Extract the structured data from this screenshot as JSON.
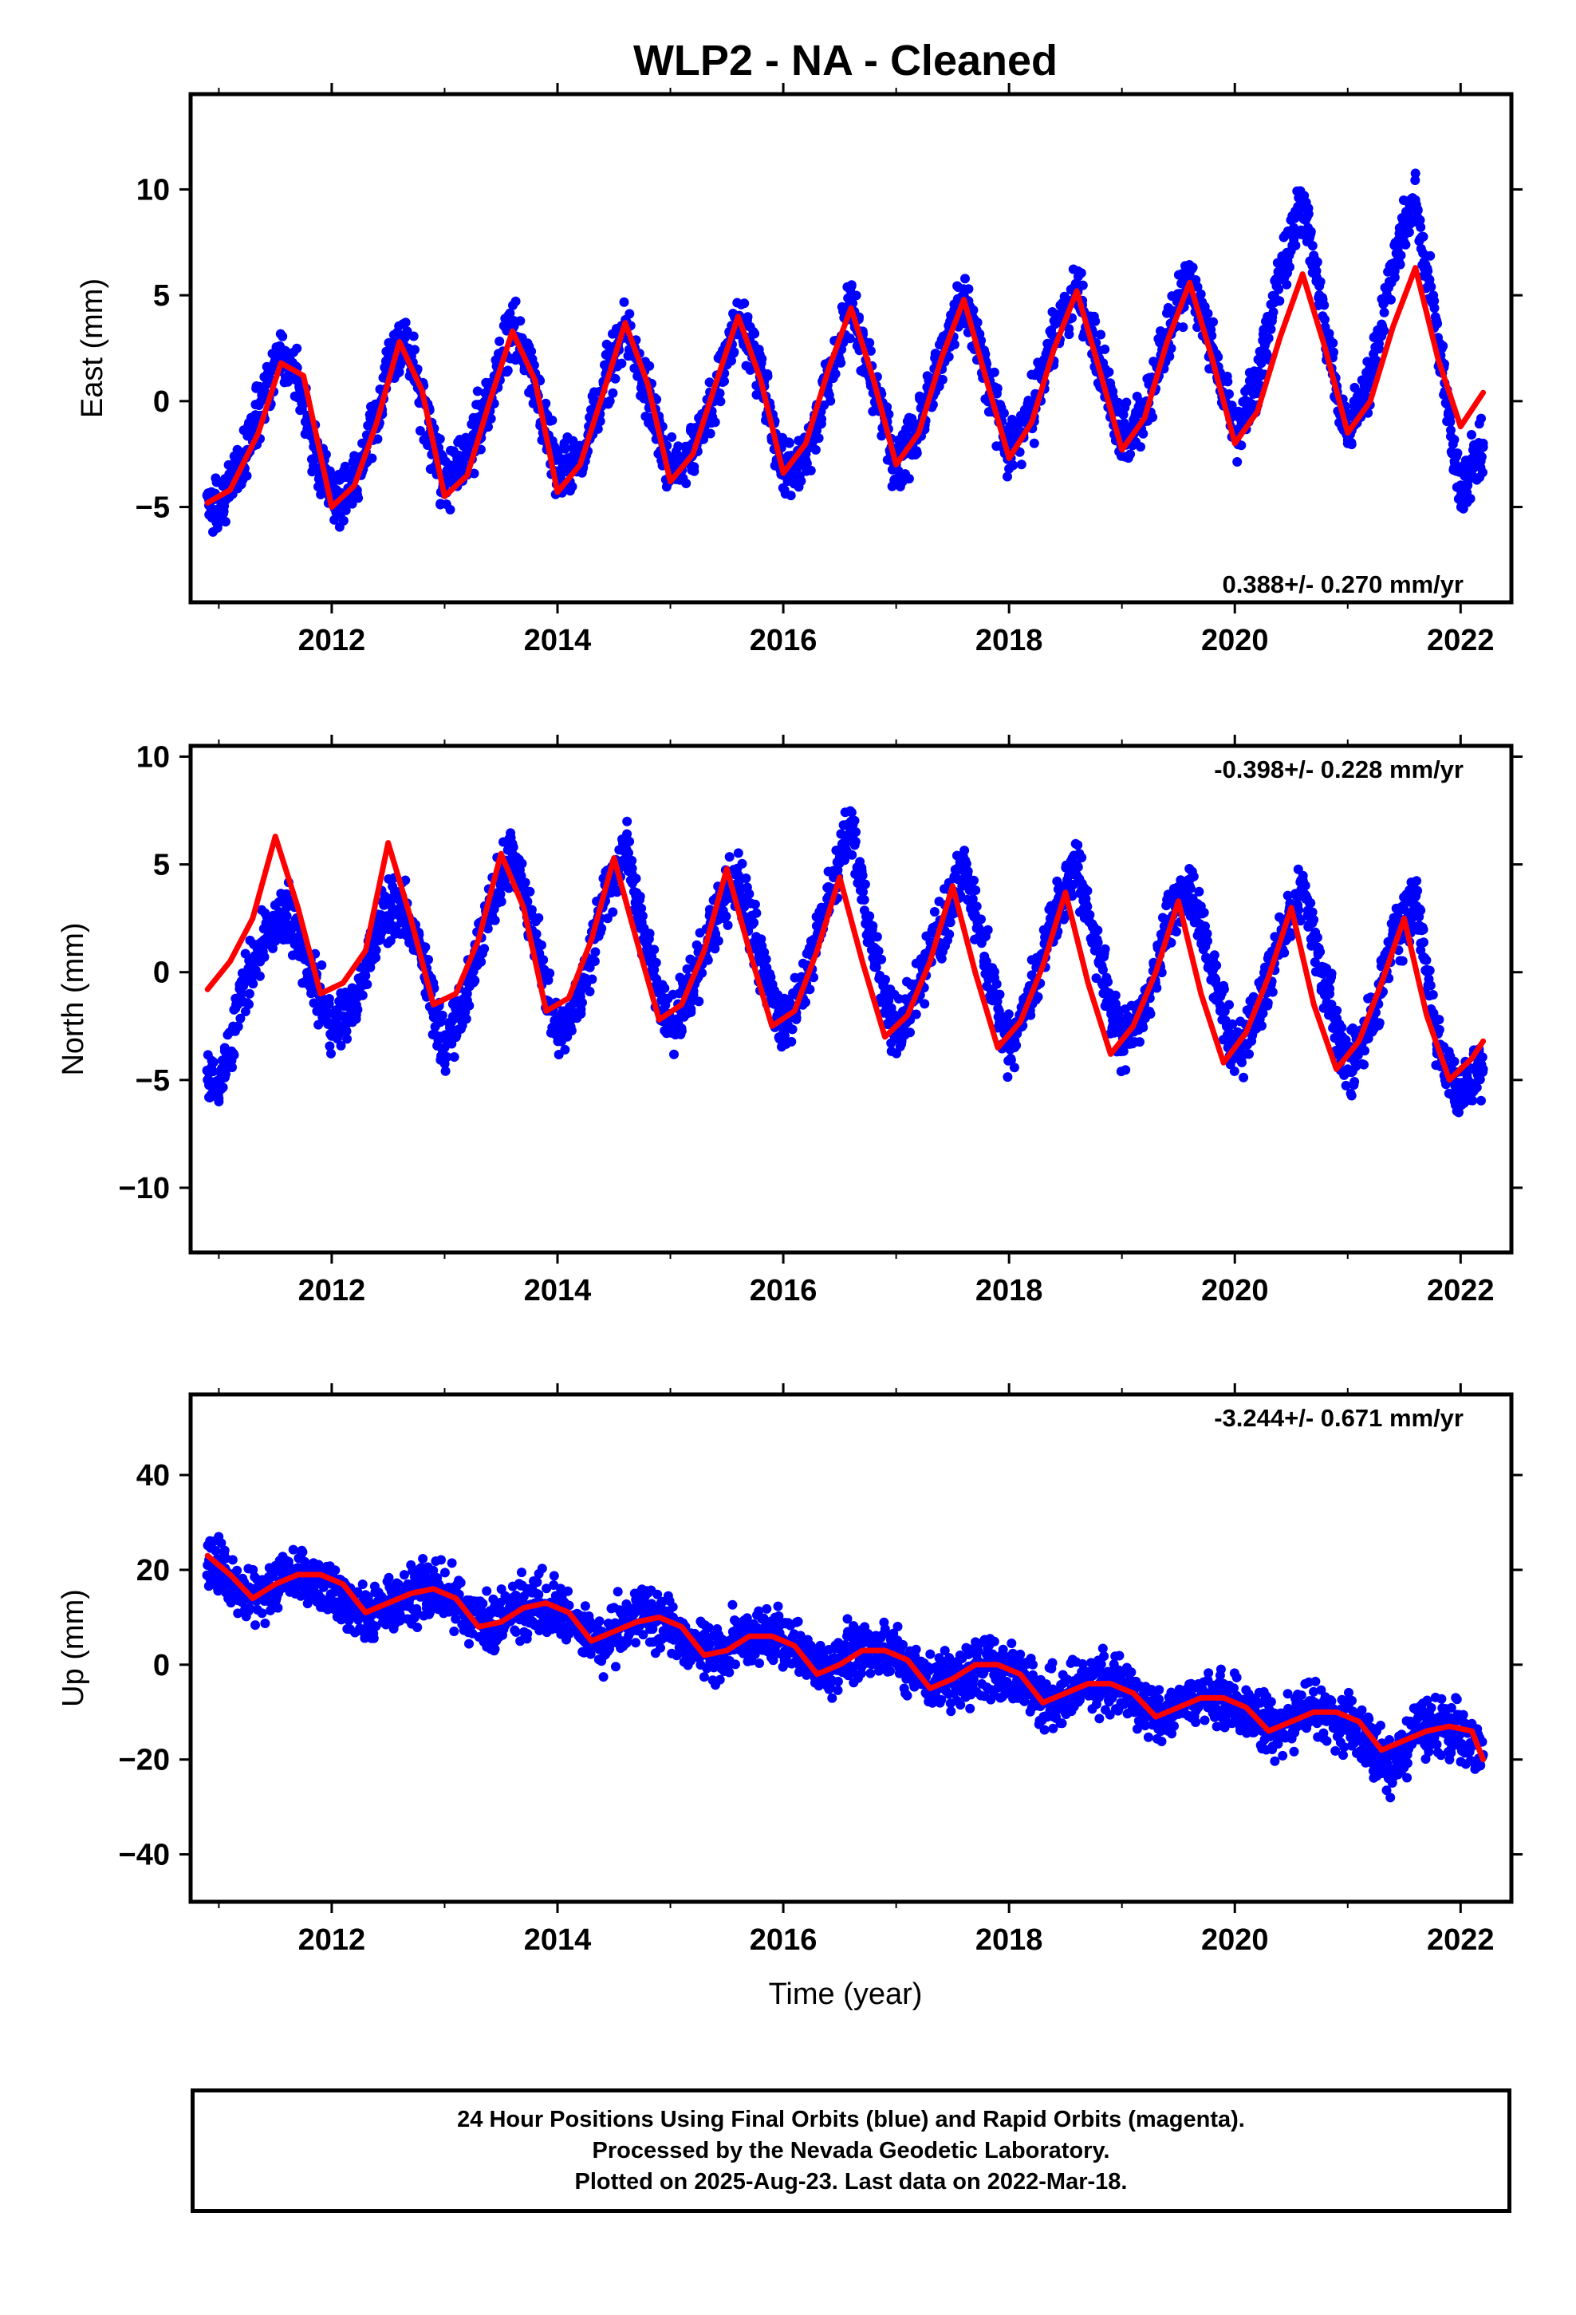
{
  "title": "WLP2  - NA - Cleaned",
  "xlabel": "Time (year)",
  "footer": {
    "line1": "24 Hour Positions Using Final Orbits (blue) and Rapid Orbits (magenta).",
    "line2": "Processed by the Nevada Geodetic Laboratory.",
    "line3": "Plotted on 2025-Aug-23. Last data on 2022-Mar-18."
  },
  "colors": {
    "points": "#0000ff",
    "model": "#ff0000",
    "frame": "#000000"
  },
  "chart_data": [
    {
      "type": "scatter",
      "ylabel": "East (mm)",
      "rate_label": "0.388+/- 0.270 mm/yr",
      "rate_position": "bottom-right",
      "xlim": [
        2010.75,
        2022.45
      ],
      "ylim": [
        -9.5,
        14.5
      ],
      "xticks": [
        2012,
        2014,
        2016,
        2018,
        2020,
        2022
      ],
      "yticks": [
        -5,
        0,
        5,
        10
      ],
      "series": [
        {
          "role": "daily positions",
          "style": "points",
          "x": [
            2010.9,
            2011.0,
            2011.2,
            2011.4,
            2011.55,
            2011.7,
            2011.9,
            2012.1,
            2012.3,
            2012.5,
            2012.65,
            2012.8,
            2013.0,
            2013.2,
            2013.4,
            2013.6,
            2013.8,
            2014.0,
            2014.2,
            2014.4,
            2014.6,
            2014.8,
            2015.0,
            2015.2,
            2015.4,
            2015.6,
            2015.8,
            2016.0,
            2016.2,
            2016.4,
            2016.6,
            2016.8,
            2017.0,
            2017.2,
            2017.4,
            2017.6,
            2017.8,
            2018.0,
            2018.2,
            2018.4,
            2018.6,
            2018.8,
            2019.0,
            2019.2,
            2019.4,
            2019.6,
            2019.8,
            2020.0,
            2020.2,
            2020.4,
            2020.6,
            2020.8,
            2021.0,
            2021.2,
            2021.4,
            2021.6,
            2021.8,
            2022.0,
            2022.2
          ],
          "y": [
            -4.5,
            -5.2,
            -3.0,
            0.5,
            2.5,
            1.0,
            -3.5,
            -4.8,
            -2.5,
            1.5,
            3.0,
            0.0,
            -4.0,
            -2.5,
            0.5,
            3.5,
            1.0,
            -3.5,
            -3.0,
            0.5,
            3.5,
            0.5,
            -3.5,
            -2.5,
            0.5,
            4.0,
            1.5,
            -3.5,
            -2.5,
            1.0,
            4.5,
            1.0,
            -3.0,
            -1.5,
            2.0,
            5.0,
            1.5,
            -2.5,
            -0.5,
            3.0,
            5.5,
            2.0,
            -2.0,
            -0.5,
            3.0,
            6.0,
            2.5,
            -1.5,
            1.0,
            6.0,
            9.5,
            3.5,
            -2.0,
            1.0,
            6.5,
            9.5,
            3.0,
            -4.5,
            -2.0
          ]
        },
        {
          "role": "model fit",
          "style": "line",
          "x": [
            2010.9,
            2011.1,
            2011.35,
            2011.55,
            2011.75,
            2012.0,
            2012.2,
            2012.4,
            2012.6,
            2012.8,
            2013.0,
            2013.2,
            2013.4,
            2013.6,
            2013.8,
            2014.0,
            2014.2,
            2014.4,
            2014.6,
            2014.8,
            2015.0,
            2015.2,
            2015.4,
            2015.6,
            2015.8,
            2016.0,
            2016.2,
            2016.4,
            2016.6,
            2016.8,
            2017.0,
            2017.2,
            2017.4,
            2017.6,
            2017.8,
            2018.0,
            2018.2,
            2018.4,
            2018.6,
            2018.8,
            2019.0,
            2019.2,
            2019.4,
            2019.6,
            2019.8,
            2020.0,
            2020.2,
            2020.4,
            2020.6,
            2020.8,
            2021.0,
            2021.2,
            2021.4,
            2021.6,
            2021.8,
            2022.0,
            2022.2
          ],
          "y": [
            -4.8,
            -4.2,
            -1.5,
            1.8,
            1.2,
            -5.0,
            -4.0,
            -1.0,
            2.8,
            0.5,
            -4.5,
            -3.5,
            0.0,
            3.3,
            1.0,
            -4.3,
            -3.0,
            0.3,
            3.7,
            0.8,
            -3.8,
            -2.5,
            0.8,
            4.0,
            1.0,
            -3.4,
            -2.0,
            1.5,
            4.4,
            1.0,
            -3.0,
            -1.5,
            2.0,
            4.8,
            1.0,
            -2.7,
            -1.0,
            2.5,
            5.2,
            1.5,
            -2.3,
            -0.8,
            2.8,
            5.6,
            2.0,
            -2.0,
            -0.5,
            3.0,
            6.0,
            2.5,
            -1.5,
            0.0,
            3.5,
            6.3,
            2.0,
            -1.2,
            0.4
          ]
        }
      ]
    },
    {
      "type": "scatter",
      "ylabel": "North (mm)",
      "rate_label": "-0.398+/- 0.228 mm/yr",
      "rate_position": "top-right",
      "xlim": [
        2010.75,
        2022.45
      ],
      "ylim": [
        -13.0,
        10.5
      ],
      "xticks": [
        2012,
        2014,
        2016,
        2018,
        2020,
        2022
      ],
      "yticks": [
        -10,
        -5,
        0,
        5,
        10
      ],
      "series": [
        {
          "role": "daily positions",
          "style": "points",
          "x": [
            2010.9,
            2011.0,
            2011.2,
            2011.4,
            2011.6,
            2011.8,
            2012.0,
            2012.2,
            2012.4,
            2012.6,
            2012.8,
            2013.0,
            2013.2,
            2013.4,
            2013.6,
            2013.8,
            2014.0,
            2014.2,
            2014.4,
            2014.6,
            2014.8,
            2015.0,
            2015.2,
            2015.4,
            2015.6,
            2015.8,
            2016.0,
            2016.2,
            2016.4,
            2016.6,
            2016.8,
            2017.0,
            2017.2,
            2017.4,
            2017.6,
            2017.8,
            2018.0,
            2018.2,
            2018.4,
            2018.6,
            2018.8,
            2019.0,
            2019.2,
            2019.4,
            2019.6,
            2019.8,
            2020.0,
            2020.2,
            2020.4,
            2020.6,
            2020.8,
            2021.0,
            2021.2,
            2021.4,
            2021.6,
            2021.8,
            2022.0,
            2022.2
          ],
          "y": [
            -5.0,
            -6.0,
            -1.0,
            1.5,
            3.0,
            0.0,
            -2.5,
            -1.5,
            2.0,
            3.5,
            0.5,
            -3.5,
            -1.0,
            3.0,
            5.5,
            1.5,
            -3.0,
            -1.0,
            3.0,
            6.0,
            1.0,
            -2.5,
            -0.5,
            2.5,
            4.5,
            0.5,
            -2.5,
            -0.5,
            3.5,
            7.0,
            1.0,
            -3.0,
            -0.5,
            2.0,
            5.0,
            0.5,
            -3.5,
            -1.0,
            2.5,
            5.0,
            0.5,
            -3.5,
            -1.5,
            2.0,
            4.0,
            0.0,
            -4.0,
            -2.0,
            1.5,
            4.0,
            -0.5,
            -4.5,
            -2.5,
            1.5,
            3.5,
            -3.5,
            -5.5,
            -4.5
          ]
        },
        {
          "role": "model fit",
          "style": "line",
          "x": [
            2010.9,
            2011.1,
            2011.3,
            2011.5,
            2011.7,
            2011.9,
            2012.1,
            2012.3,
            2012.5,
            2012.7,
            2012.9,
            2013.1,
            2013.3,
            2013.5,
            2013.7,
            2013.9,
            2014.1,
            2014.3,
            2014.5,
            2014.7,
            2014.9,
            2015.1,
            2015.3,
            2015.5,
            2015.7,
            2015.9,
            2016.1,
            2016.3,
            2016.5,
            2016.7,
            2016.9,
            2017.1,
            2017.3,
            2017.5,
            2017.7,
            2017.9,
            2018.1,
            2018.3,
            2018.5,
            2018.7,
            2018.9,
            2019.1,
            2019.3,
            2019.5,
            2019.7,
            2019.9,
            2020.1,
            2020.3,
            2020.5,
            2020.7,
            2020.9,
            2021.1,
            2021.3,
            2021.5,
            2021.7,
            2021.9,
            2022.1,
            2022.2
          ],
          "y": [
            -0.8,
            0.5,
            2.5,
            6.3,
            3.0,
            -1.0,
            -0.5,
            1.0,
            6.0,
            2.5,
            -1.5,
            -1.0,
            1.5,
            5.5,
            3.0,
            -1.8,
            -1.2,
            1.5,
            5.3,
            1.5,
            -2.2,
            -1.5,
            1.0,
            4.8,
            1.0,
            -2.5,
            -1.8,
            1.0,
            4.4,
            0.5,
            -3.0,
            -2.0,
            0.5,
            4.0,
            0.0,
            -3.5,
            -2.3,
            0.3,
            3.7,
            -0.5,
            -3.8,
            -2.5,
            0.0,
            3.3,
            -1.0,
            -4.2,
            -2.8,
            -0.2,
            3.0,
            -1.5,
            -4.5,
            -3.2,
            -0.5,
            2.5,
            -2.0,
            -5.0,
            -4.0,
            -3.2
          ]
        }
      ]
    },
    {
      "type": "scatter",
      "ylabel": "Up (mm)",
      "rate_label": "-3.244+/- 0.671 mm/yr",
      "rate_position": "top-right",
      "xlim": [
        2010.75,
        2022.45
      ],
      "ylim": [
        -50,
        57
      ],
      "xticks": [
        2012,
        2014,
        2016,
        2018,
        2020,
        2022
      ],
      "yticks": [
        -40,
        -20,
        0,
        20,
        40
      ],
      "series": [
        {
          "role": "daily positions",
          "style": "points",
          "x": [
            2010.9,
            2011.0,
            2011.2,
            2011.4,
            2011.6,
            2011.8,
            2012.0,
            2012.2,
            2012.4,
            2012.6,
            2012.8,
            2013.0,
            2013.2,
            2013.4,
            2013.6,
            2013.8,
            2014.0,
            2014.2,
            2014.4,
            2014.6,
            2014.8,
            2015.0,
            2015.2,
            2015.4,
            2015.6,
            2015.8,
            2016.0,
            2016.2,
            2016.4,
            2016.6,
            2016.8,
            2017.0,
            2017.2,
            2017.4,
            2017.6,
            2017.8,
            2018.0,
            2018.2,
            2018.4,
            2018.6,
            2018.8,
            2019.0,
            2019.2,
            2019.4,
            2019.6,
            2019.8,
            2020.0,
            2020.2,
            2020.4,
            2020.6,
            2020.8,
            2021.0,
            2021.2,
            2021.4,
            2021.6,
            2021.8,
            2022.0,
            2022.2
          ],
          "y": [
            21,
            20,
            14,
            15,
            19,
            18,
            17,
            12,
            11,
            14,
            16,
            15,
            12,
            8,
            11,
            13,
            12,
            7,
            5,
            9,
            10,
            8,
            4,
            2,
            5,
            6,
            5,
            1,
            -2,
            3,
            3,
            2,
            -2,
            -4,
            -1,
            0,
            -1,
            -5,
            -8,
            -4,
            -4,
            -5,
            -9,
            -11,
            -7,
            -7,
            -8,
            -12,
            -14,
            -10,
            -10,
            -12,
            -17,
            -22,
            -14,
            -13,
            -14,
            -19
          ]
        },
        {
          "role": "model fit",
          "style": "line",
          "x": [
            2010.9,
            2011.1,
            2011.3,
            2011.5,
            2011.7,
            2011.9,
            2012.1,
            2012.3,
            2012.5,
            2012.7,
            2012.9,
            2013.1,
            2013.3,
            2013.5,
            2013.7,
            2013.9,
            2014.1,
            2014.3,
            2014.5,
            2014.7,
            2014.9,
            2015.1,
            2015.3,
            2015.5,
            2015.7,
            2015.9,
            2016.1,
            2016.3,
            2016.5,
            2016.7,
            2016.9,
            2017.1,
            2017.3,
            2017.5,
            2017.7,
            2017.9,
            2018.1,
            2018.3,
            2018.5,
            2018.7,
            2018.9,
            2019.1,
            2019.3,
            2019.5,
            2019.7,
            2019.9,
            2020.1,
            2020.3,
            2020.5,
            2020.7,
            2020.9,
            2021.1,
            2021.3,
            2021.5,
            2021.7,
            2021.9,
            2022.1,
            2022.2
          ],
          "y": [
            23,
            19,
            14,
            17,
            19,
            19,
            17,
            11,
            13,
            15,
            16,
            14,
            8,
            9,
            12,
            13,
            11,
            5,
            7,
            9,
            10,
            8,
            2,
            3,
            6,
            6,
            4,
            -2,
            0,
            3,
            3,
            1,
            -5,
            -3,
            0,
            0,
            -2,
            -8,
            -6,
            -4,
            -4,
            -6,
            -11,
            -9,
            -7,
            -7,
            -9,
            -14,
            -12,
            -10,
            -10,
            -12,
            -18,
            -16,
            -14,
            -13,
            -14,
            -20
          ]
        }
      ]
    }
  ]
}
